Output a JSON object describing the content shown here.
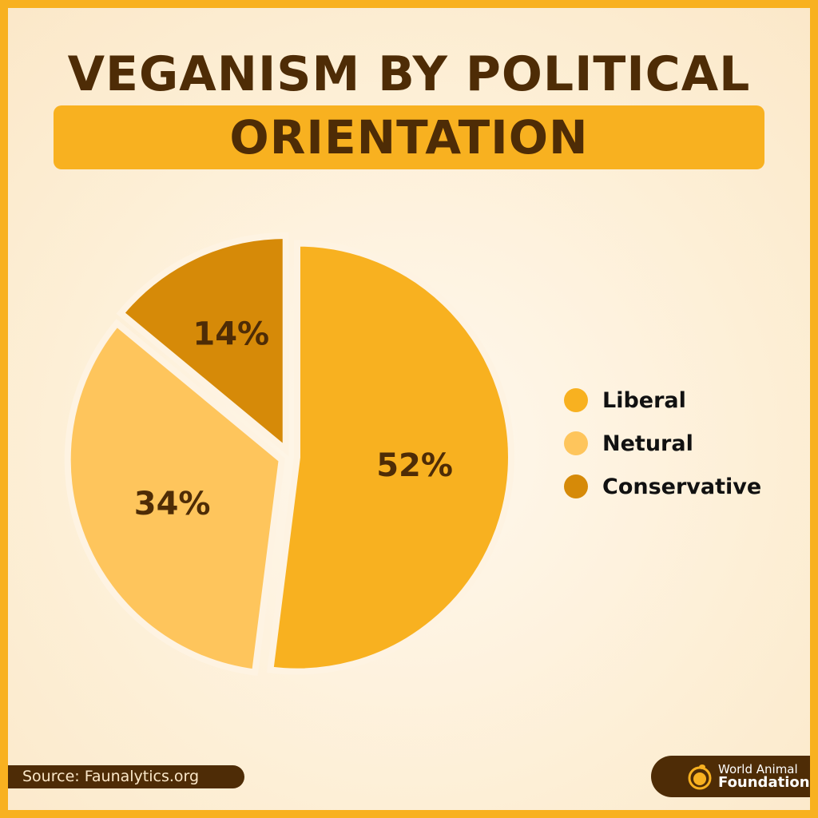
{
  "title": {
    "line1": "VEGANISM BY POLITICAL",
    "line2": "ORIENTATION"
  },
  "legend": [
    {
      "label": "Liberal",
      "color": "#f8b120"
    },
    {
      "label": "Netural",
      "color": "#fec55c"
    },
    {
      "label": "Conservative",
      "color": "#d68a08"
    }
  ],
  "source": "Source: Faunalytics.org",
  "brand": {
    "line1": "World Animal",
    "line2": "Foundation"
  },
  "colors": {
    "frame": "#f8b120",
    "dark_brown": "#4e2c06",
    "background": "#fdefd6"
  },
  "chart_data": {
    "type": "pie",
    "title": "VEGANISM BY POLITICAL ORIENTATION",
    "categories": [
      "Liberal",
      "Netural",
      "Conservative"
    ],
    "values": [
      52,
      34,
      14
    ],
    "labels": [
      "52%",
      "34%",
      "14%"
    ],
    "colors": [
      "#f8b120",
      "#fec55c",
      "#d68a08"
    ],
    "start_angle_deg": 0,
    "direction": "clockwise",
    "exploded": true,
    "legend_position": "right"
  }
}
